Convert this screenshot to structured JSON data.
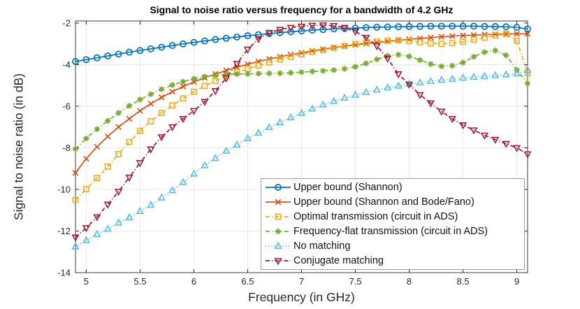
{
  "chart_data": {
    "type": "line",
    "title": "Signal to noise ratio versus frequency for a bandwidth of 4.2 GHz",
    "xlabel": "Frequency (in GHz)",
    "ylabel": "Signal to noise ratio (in dB)",
    "xlim": [
      4.9,
      9.1
    ],
    "ylim": [
      -14.0,
      -1.9
    ],
    "xticks": [
      5,
      5.5,
      6,
      6.5,
      7,
      7.5,
      8,
      8.5,
      9
    ],
    "xtick_labels": [
      "5",
      "5.5",
      "6",
      "6.5",
      "7",
      "7.5",
      "8",
      "8.5",
      "9"
    ],
    "yticks": [
      -2,
      -4,
      -6,
      -8,
      -10,
      -12,
      -14
    ],
    "ytick_labels": [
      "-2",
      "-4",
      "-6",
      "-8",
      "-10",
      "-12",
      "-14"
    ],
    "grid": true,
    "legend_position": "inside lower right",
    "x": [
      4.9,
      5.0,
      5.1,
      5.2,
      5.3,
      5.4,
      5.5,
      5.6,
      5.7,
      5.8,
      5.9,
      6.0,
      6.1,
      6.2,
      6.3,
      6.4,
      6.5,
      6.6,
      6.7,
      6.8,
      6.9,
      7.0,
      7.1,
      7.2,
      7.3,
      7.4,
      7.5,
      7.6,
      7.7,
      7.8,
      7.9,
      8.0,
      8.1,
      8.2,
      8.3,
      8.4,
      8.5,
      8.6,
      8.7,
      8.8,
      8.9,
      9.0,
      9.1
    ],
    "series": [
      {
        "name": "Upper bound (Shannon)",
        "color": "#0072BD",
        "marker": "circle",
        "linestyle": "solid",
        "values": [
          -3.85,
          -3.76,
          -3.67,
          -3.58,
          -3.49,
          -3.4,
          -3.32,
          -3.24,
          -3.16,
          -3.08,
          -3.0,
          -2.93,
          -2.86,
          -2.79,
          -2.73,
          -2.67,
          -2.61,
          -2.56,
          -2.51,
          -2.46,
          -2.42,
          -2.38,
          -2.34,
          -2.31,
          -2.28,
          -2.26,
          -2.24,
          -2.22,
          -2.2,
          -2.19,
          -2.18,
          -2.17,
          -2.16,
          -2.15,
          -2.15,
          -2.15,
          -2.15,
          -2.15,
          -2.16,
          -2.17,
          -2.18,
          -2.21,
          -2.28
        ]
      },
      {
        "name": "Upper bound (Shannon and Bode/Fano)",
        "color": "#D95319",
        "marker": "x",
        "linestyle": "solid",
        "values": [
          -9.2,
          -8.52,
          -7.95,
          -7.45,
          -7.0,
          -6.6,
          -6.22,
          -5.88,
          -5.57,
          -5.3,
          -5.05,
          -4.83,
          -4.63,
          -4.45,
          -4.28,
          -4.12,
          -3.98,
          -3.85,
          -3.73,
          -3.62,
          -3.52,
          -3.43,
          -3.34,
          -3.26,
          -3.18,
          -3.11,
          -3.05,
          -2.99,
          -2.93,
          -2.88,
          -2.83,
          -2.78,
          -2.74,
          -2.7,
          -2.66,
          -2.63,
          -2.6,
          -2.58,
          -2.56,
          -2.54,
          -2.53,
          -2.52,
          -2.52
        ]
      },
      {
        "name": "Optimal transmission (circuit in ADS)",
        "color": "#EDB120",
        "marker": "square",
        "linestyle": "dashdot",
        "values": [
          -10.5,
          -9.98,
          -9.45,
          -8.9,
          -8.3,
          -7.72,
          -7.18,
          -6.72,
          -6.32,
          -5.96,
          -5.62,
          -5.3,
          -5.02,
          -4.78,
          -4.56,
          -4.37,
          -4.2,
          -4.04,
          -3.89,
          -3.75,
          -3.62,
          -3.5,
          -3.39,
          -3.29,
          -3.19,
          -3.1,
          -3.01,
          -2.94,
          -2.88,
          -2.84,
          -2.83,
          -2.86,
          -2.92,
          -2.98,
          -3.0,
          -2.97,
          -2.9,
          -2.8,
          -2.7,
          -2.6,
          -2.52,
          -2.85,
          -4.4
        ]
      },
      {
        "name": "Frequency-flat transmission (circuit in ADS)",
        "color": "#77AC30",
        "marker": "asterisk",
        "linestyle": "dashdot",
        "values": [
          -8.05,
          -7.55,
          -7.1,
          -6.7,
          -6.32,
          -5.98,
          -5.68,
          -5.42,
          -5.18,
          -4.98,
          -4.82,
          -4.68,
          -4.58,
          -4.51,
          -4.47,
          -4.45,
          -4.44,
          -4.43,
          -4.42,
          -4.41,
          -4.39,
          -4.36,
          -4.33,
          -4.3,
          -4.26,
          -4.2,
          -4.1,
          -3.94,
          -3.75,
          -3.58,
          -3.52,
          -3.6,
          -3.78,
          -3.97,
          -4.08,
          -4.05,
          -3.9,
          -3.62,
          -3.4,
          -3.32,
          -3.55,
          -4.25,
          -4.9
        ]
      },
      {
        "name": "No matching",
        "color": "#4DBEEE",
        "marker": "triangle-up",
        "linestyle": "dotted",
        "values": [
          -12.75,
          -12.45,
          -12.15,
          -11.9,
          -11.6,
          -11.35,
          -11.05,
          -10.75,
          -10.4,
          -10.05,
          -9.65,
          -9.25,
          -8.85,
          -8.5,
          -8.15,
          -7.85,
          -7.55,
          -7.28,
          -7.02,
          -6.78,
          -6.55,
          -6.33,
          -6.12,
          -5.93,
          -5.76,
          -5.6,
          -5.46,
          -5.33,
          -5.21,
          -5.11,
          -5.02,
          -4.94,
          -4.87,
          -4.8,
          -4.74,
          -4.69,
          -4.64,
          -4.6,
          -4.56,
          -4.52,
          -4.48,
          -4.43,
          -4.28
        ]
      },
      {
        "name": "Conjugate matching",
        "color": "#A2142F",
        "marker": "triangle-down",
        "linestyle": "dashdot",
        "values": [
          -12.3,
          -11.85,
          -11.32,
          -10.72,
          -10.1,
          -9.42,
          -8.72,
          -8.06,
          -7.48,
          -7.0,
          -6.6,
          -6.22,
          -5.78,
          -5.26,
          -4.65,
          -3.95,
          -3.26,
          -2.76,
          -2.46,
          -2.31,
          -2.22,
          -2.16,
          -2.12,
          -2.1,
          -2.13,
          -2.22,
          -2.4,
          -2.7,
          -3.1,
          -3.7,
          -4.45,
          -4.95,
          -5.45,
          -5.85,
          -6.25,
          -6.6,
          -6.9,
          -7.15,
          -7.4,
          -7.6,
          -7.8,
          -8.0,
          -8.3
        ]
      }
    ],
    "style": {
      "grid_color": "#e8e8e8",
      "box_color": "#3b3b3b",
      "tick_color": "#262626",
      "background": "#ffffff"
    }
  }
}
